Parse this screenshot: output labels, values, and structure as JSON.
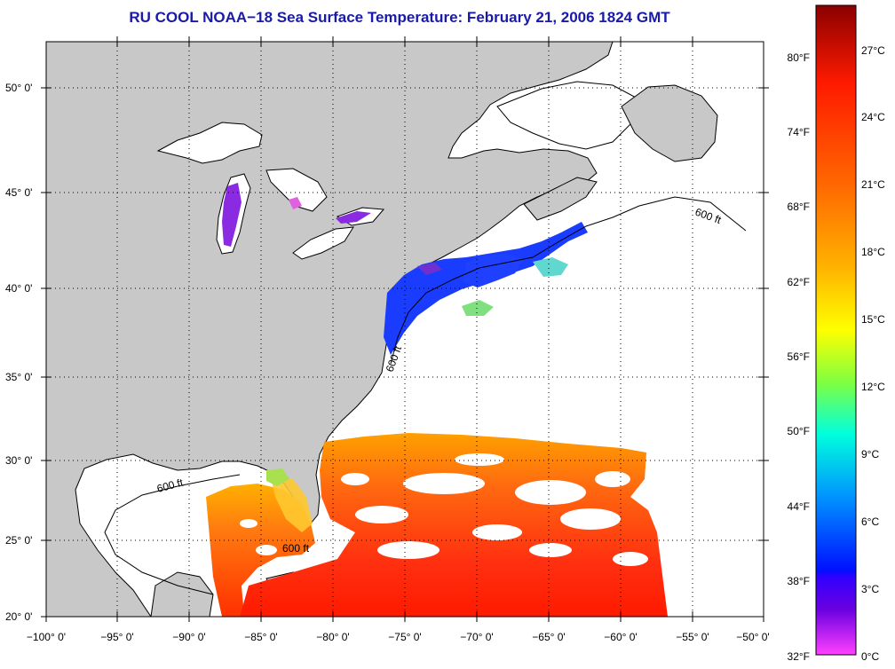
{
  "title": "RU COOL  NOAA−18  Sea Surface Temperature:  February 21, 2006 1824 GMT",
  "map": {
    "lon_min": -100,
    "lon_max": -50,
    "lat_min": 20,
    "lat_max": 52.5,
    "lat_labels": [
      "50° 0'",
      "45° 0'",
      "40° 0'",
      "35° 0'",
      "30° 0'",
      "25° 0'",
      "20° 0'"
    ],
    "lon_labels": [
      "−100° 0'",
      "−95° 0'",
      "−90° 0'",
      "−85° 0'",
      "−80° 0'",
      "−75° 0'",
      "−70° 0'",
      "−65° 0'",
      "−60° 0'",
      "−55° 0'",
      "−50° 0'"
    ],
    "contour_label": "600 ft",
    "land_color": "#c8c8c8",
    "cloud_color": "#ffffff"
  },
  "colorbar": {
    "fahrenheit_labels": [
      "80°F",
      "74°F",
      "68°F",
      "62°F",
      "56°F",
      "50°F",
      "44°F",
      "38°F",
      "32°F"
    ],
    "celsius_labels": [
      "27°C",
      "24°C",
      "21°C",
      "18°C",
      "15°C",
      "12°C",
      "9°C",
      "6°C",
      "3°C",
      "0°C"
    ],
    "colors_top_to_bottom": [
      "#8b0000",
      "#ff1a00",
      "#ff6a00",
      "#ffb000",
      "#ffff00",
      "#80ff40",
      "#00ffdd",
      "#0090ff",
      "#0010ff",
      "#6a00e0",
      "#ff40ff"
    ]
  }
}
